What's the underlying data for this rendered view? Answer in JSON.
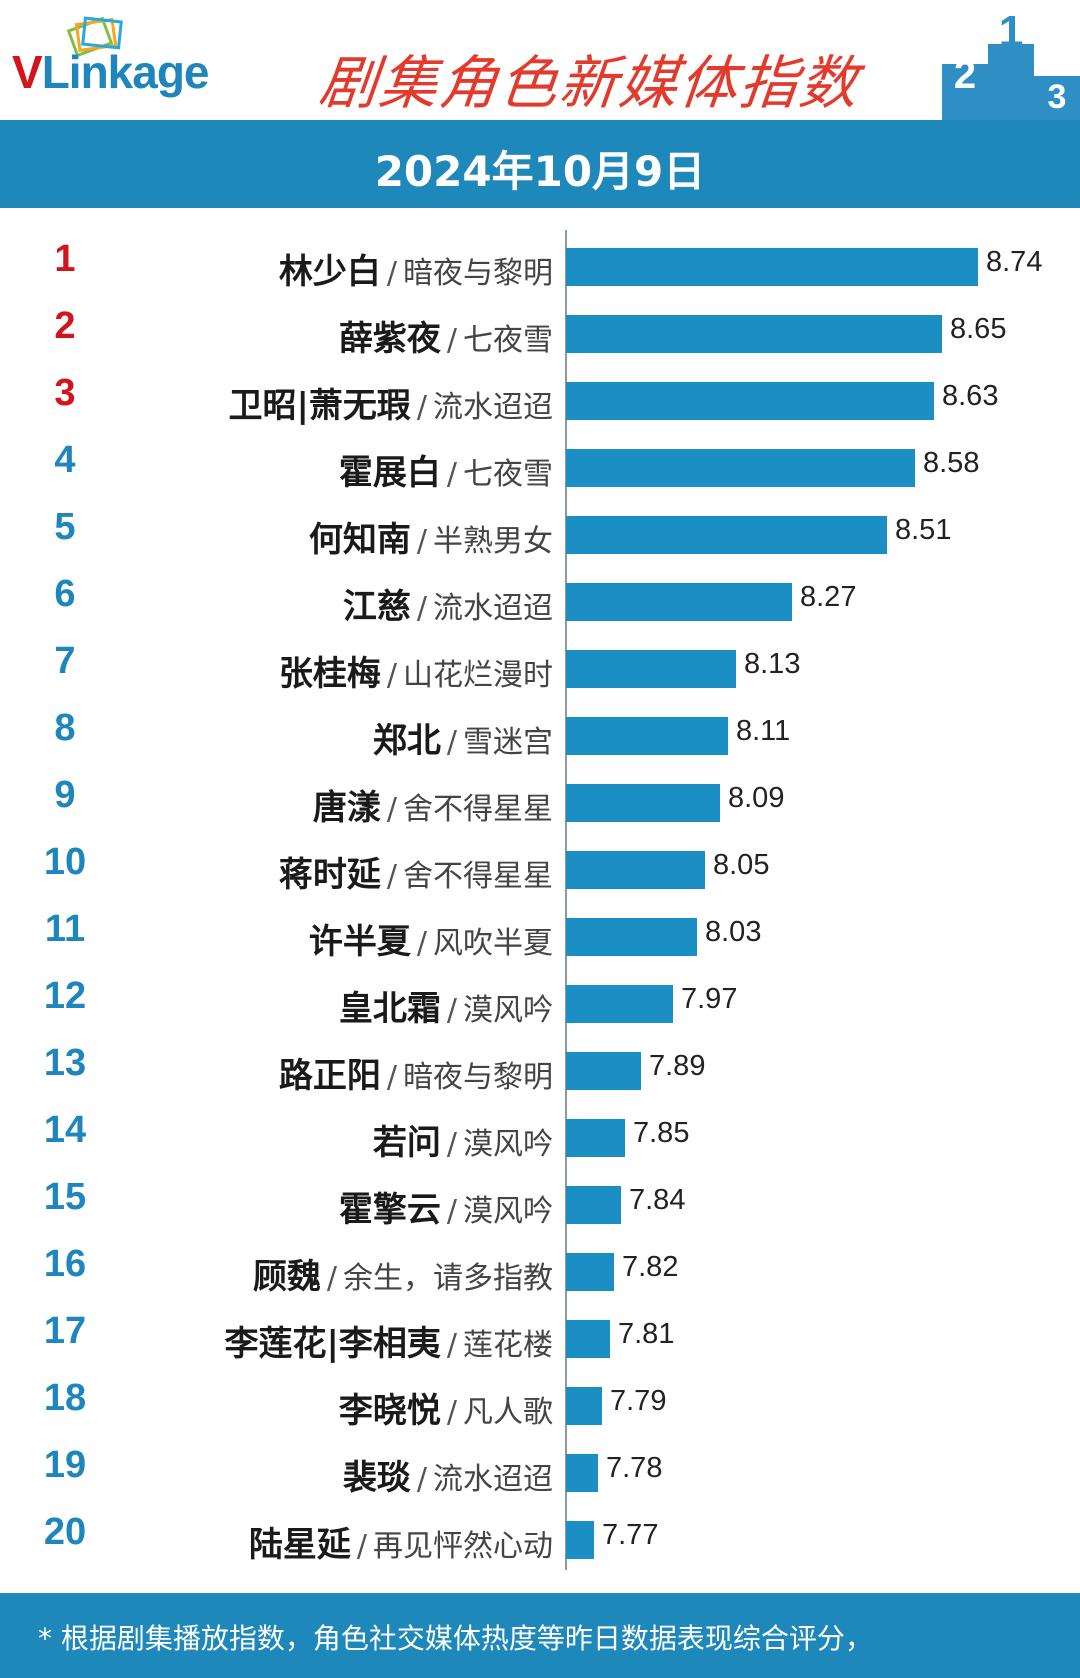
{
  "header": {
    "logo_text_v": "V",
    "logo_text_rest": "Linkage",
    "title": "剧集角色新媒体指数",
    "date": "2024年10月9日",
    "podium_numbers": [
      "2",
      "1",
      "3"
    ]
  },
  "colors": {
    "brand_blue": "#1e88bb",
    "bar_blue": "#1b8ec4",
    "title_red": "#e23a2c",
    "rank_top3": "#d4141c",
    "rank_other": "#1e86bd"
  },
  "chart_data": {
    "type": "bar",
    "orientation": "horizontal",
    "categories": [
      "林少白 / 暗夜与黎明",
      "薛紫夜 / 七夜雪",
      "卫昭|萧无瑕 / 流水迢迢",
      "霍展白 / 七夜雪",
      "何知南 / 半熟男女",
      "江慈 / 流水迢迢",
      "张桂梅 / 山花烂漫时",
      "郑北 / 雪迷宫",
      "唐漾 / 舍不得星星",
      "蒋时延 / 舍不得星星",
      "许半夏 / 风吹半夏",
      "皇北霜 / 漠风吟",
      "路正阳 / 暗夜与黎明",
      "若问 / 漠风吟",
      "霍擎云 / 漠风吟",
      "顾魏 / 余生，请多指教",
      "李莲花|李相夷 / 莲花楼",
      "李晓悦 / 凡人歌",
      "裴琰 / 流水迢迢",
      "陆星延 / 再见怦然心动"
    ],
    "values": [
      8.74,
      8.65,
      8.63,
      8.58,
      8.51,
      8.27,
      8.13,
      8.11,
      8.09,
      8.05,
      8.03,
      7.97,
      7.89,
      7.85,
      7.84,
      7.82,
      7.81,
      7.79,
      7.78,
      7.77
    ],
    "rows": [
      {
        "rank": "1",
        "name": "林少白",
        "drama": "暗夜与黎明",
        "value": "8.74"
      },
      {
        "rank": "2",
        "name": "薛紫夜",
        "drama": "七夜雪",
        "value": "8.65"
      },
      {
        "rank": "3",
        "name": "卫昭|萧无瑕",
        "drama": "流水迢迢",
        "value": "8.63"
      },
      {
        "rank": "4",
        "name": "霍展白",
        "drama": "七夜雪",
        "value": "8.58"
      },
      {
        "rank": "5",
        "name": "何知南",
        "drama": "半熟男女",
        "value": "8.51"
      },
      {
        "rank": "6",
        "name": "江慈",
        "drama": "流水迢迢",
        "value": "8.27"
      },
      {
        "rank": "7",
        "name": "张桂梅",
        "drama": "山花烂漫时",
        "value": "8.13"
      },
      {
        "rank": "8",
        "name": "郑北",
        "drama": "雪迷宫",
        "value": "8.11"
      },
      {
        "rank": "9",
        "name": "唐漾",
        "drama": "舍不得星星",
        "value": "8.09"
      },
      {
        "rank": "10",
        "name": "蒋时延",
        "drama": "舍不得星星",
        "value": "8.05"
      },
      {
        "rank": "11",
        "name": "许半夏",
        "drama": "风吹半夏",
        "value": "8.03"
      },
      {
        "rank": "12",
        "name": "皇北霜",
        "drama": "漠风吟",
        "value": "7.97"
      },
      {
        "rank": "13",
        "name": "路正阳",
        "drama": "暗夜与黎明",
        "value": "7.89"
      },
      {
        "rank": "14",
        "name": "若问",
        "drama": "漠风吟",
        "value": "7.85"
      },
      {
        "rank": "15",
        "name": "霍擎云",
        "drama": "漠风吟",
        "value": "7.84"
      },
      {
        "rank": "16",
        "name": "顾魏",
        "drama": "余生，请多指教",
        "value": "7.82"
      },
      {
        "rank": "17",
        "name": "李莲花|李相夷",
        "drama": "莲花楼",
        "value": "7.81"
      },
      {
        "rank": "18",
        "name": "李晓悦",
        "drama": "凡人歌",
        "value": "7.79"
      },
      {
        "rank": "19",
        "name": "裴琰",
        "drama": "流水迢迢",
        "value": "7.78"
      },
      {
        "rank": "20",
        "name": "陆星延",
        "drama": "再见怦然心动",
        "value": "7.77"
      }
    ],
    "title": "剧集角色新媒体指数",
    "grid": false,
    "legend": "none"
  },
  "footer": {
    "note": "* 根据剧集播放指数，角色社交媒体热度等昨日数据表现综合评分，"
  }
}
